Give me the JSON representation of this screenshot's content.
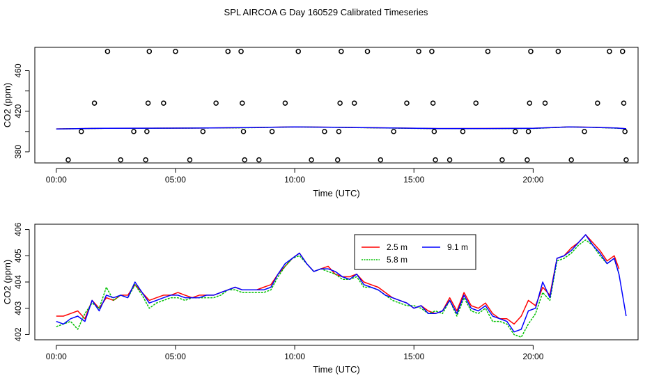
{
  "page_title": "SPL AIRCOA G  Day 160529  Calibrated Timeseries",
  "colors": {
    "s25": "#ff0000",
    "s58": "#00c000",
    "s91": "#0000ff",
    "axis": "#000000"
  },
  "chart_data": [
    {
      "type": "line+scatter",
      "xlabel": "Time (UTC)",
      "ylabel": "CO2 (ppm)",
      "xlim": [
        -0.9,
        24.4
      ],
      "ylim": [
        369,
        483
      ],
      "x_tick_values": [
        0,
        5,
        10,
        15,
        20
      ],
      "x_tick_labels": [
        "00:00",
        "05:00",
        "10:00",
        "15:00",
        "20:00"
      ],
      "y_tick_values": [
        380,
        420,
        460
      ],
      "y_tick_labels": [
        "380",
        "420",
        "460"
      ],
      "y_ticks_minor": [
        400,
        440
      ],
      "calibration_points": [
        {
          "x": 0.5,
          "y": 372
        },
        {
          "x": 1.05,
          "y": 400
        },
        {
          "x": 1.6,
          "y": 428
        },
        {
          "x": 2.15,
          "y": 479
        },
        {
          "x": 2.7,
          "y": 372
        },
        {
          "x": 3.25,
          "y": 400
        },
        {
          "x": 3.75,
          "y": 372
        },
        {
          "x": 3.8,
          "y": 400
        },
        {
          "x": 3.85,
          "y": 428
        },
        {
          "x": 3.9,
          "y": 479
        },
        {
          "x": 4.5,
          "y": 428
        },
        {
          "x": 5.0,
          "y": 479
        },
        {
          "x": 5.6,
          "y": 372
        },
        {
          "x": 6.15,
          "y": 400
        },
        {
          "x": 6.7,
          "y": 428
        },
        {
          "x": 7.2,
          "y": 479
        },
        {
          "x": 7.75,
          "y": 479
        },
        {
          "x": 7.8,
          "y": 428
        },
        {
          "x": 7.85,
          "y": 400
        },
        {
          "x": 7.9,
          "y": 372
        },
        {
          "x": 8.5,
          "y": 372
        },
        {
          "x": 9.05,
          "y": 400
        },
        {
          "x": 9.6,
          "y": 428
        },
        {
          "x": 10.15,
          "y": 479
        },
        {
          "x": 10.7,
          "y": 372
        },
        {
          "x": 11.25,
          "y": 400
        },
        {
          "x": 11.8,
          "y": 372
        },
        {
          "x": 11.85,
          "y": 400
        },
        {
          "x": 11.9,
          "y": 428
        },
        {
          "x": 11.95,
          "y": 479
        },
        {
          "x": 12.5,
          "y": 428
        },
        {
          "x": 13.05,
          "y": 479
        },
        {
          "x": 13.6,
          "y": 372
        },
        {
          "x": 14.15,
          "y": 400
        },
        {
          "x": 14.7,
          "y": 428
        },
        {
          "x": 15.2,
          "y": 479
        },
        {
          "x": 15.75,
          "y": 479
        },
        {
          "x": 15.8,
          "y": 428
        },
        {
          "x": 15.85,
          "y": 400
        },
        {
          "x": 15.9,
          "y": 372
        },
        {
          "x": 16.5,
          "y": 372
        },
        {
          "x": 17.05,
          "y": 400
        },
        {
          "x": 17.6,
          "y": 428
        },
        {
          "x": 18.1,
          "y": 479
        },
        {
          "x": 18.7,
          "y": 372
        },
        {
          "x": 19.25,
          "y": 400
        },
        {
          "x": 19.75,
          "y": 372
        },
        {
          "x": 19.8,
          "y": 400
        },
        {
          "x": 19.85,
          "y": 428
        },
        {
          "x": 19.9,
          "y": 479
        },
        {
          "x": 20.5,
          "y": 428
        },
        {
          "x": 21.05,
          "y": 479
        },
        {
          "x": 21.6,
          "y": 372
        },
        {
          "x": 22.15,
          "y": 400
        },
        {
          "x": 22.7,
          "y": 428
        },
        {
          "x": 23.2,
          "y": 479
        },
        {
          "x": 23.75,
          "y": 479
        },
        {
          "x": 23.8,
          "y": 428
        },
        {
          "x": 23.85,
          "y": 400
        },
        {
          "x": 23.9,
          "y": 372
        }
      ],
      "trend_series": [
        {
          "name": "2.5 m",
          "color_key": "s25",
          "x": [
            0,
            2,
            4,
            6,
            8,
            10,
            12,
            14,
            16,
            18,
            20,
            21.5,
            22.5,
            23.5,
            23.9
          ],
          "y": [
            402.6,
            403.2,
            403.3,
            403.4,
            403.8,
            404.6,
            404.1,
            403.5,
            402.9,
            403.0,
            403.2,
            404.6,
            404.2,
            403.4,
            402.7
          ]
        },
        {
          "name": "5.8 m",
          "color_key": "s58",
          "x": [
            0,
            2,
            4,
            6,
            8,
            10,
            12,
            14,
            16,
            18,
            20,
            21.5,
            22.5,
            23.5,
            23.9
          ],
          "y": [
            402.5,
            403.1,
            403.2,
            403.4,
            403.7,
            404.5,
            404.0,
            403.4,
            402.8,
            402.8,
            403.0,
            404.5,
            404.1,
            403.3,
            402.7
          ]
        },
        {
          "name": "9.1 m",
          "color_key": "s91",
          "x": [
            0,
            2,
            4,
            6,
            8,
            10,
            12,
            14,
            16,
            18,
            20,
            21.5,
            22.5,
            23.5,
            23.9
          ],
          "y": [
            402.5,
            403.2,
            403.3,
            403.4,
            403.8,
            404.6,
            404.1,
            403.5,
            402.9,
            402.9,
            403.1,
            404.6,
            404.1,
            403.4,
            402.7
          ]
        }
      ]
    },
    {
      "type": "line",
      "xlabel": "Time (UTC)",
      "ylabel": "CO2 (ppm)",
      "xlim": [
        -0.9,
        24.4
      ],
      "ylim": [
        401.8,
        406.2
      ],
      "x_tick_values": [
        0,
        5,
        10,
        15,
        20
      ],
      "x_tick_labels": [
        "00:00",
        "05:00",
        "10:00",
        "15:00",
        "20:00"
      ],
      "y_tick_values": [
        402,
        403,
        404,
        405,
        406
      ],
      "y_tick_labels": [
        "402",
        "403",
        "404",
        "405",
        "406"
      ],
      "legend": {
        "position": "top-center",
        "entries": [
          {
            "label": "2.5 m",
            "color_key": "s25"
          },
          {
            "label": "9.1 m",
            "color_key": "s91"
          },
          {
            "label": "5.8 m",
            "color_key": "s58"
          }
        ]
      },
      "series": [
        {
          "name": "2.5 m",
          "color_key": "s25",
          "x": [
            0,
            0.3,
            0.6,
            0.9,
            1.2,
            1.5,
            1.8,
            2.1,
            2.4,
            2.7,
            3.0,
            3.3,
            3.6,
            3.9,
            4.2,
            4.5,
            4.8,
            5.1,
            5.4,
            5.7,
            6.0,
            6.3,
            6.6,
            6.9,
            7.2,
            7.5,
            7.8,
            8.1,
            8.4,
            8.7,
            9.0,
            9.3,
            9.6,
            9.9,
            10.2,
            10.5,
            10.8,
            11.1,
            11.4,
            11.7,
            12.0,
            12.3,
            12.6,
            12.9,
            13.2,
            13.5,
            13.8,
            14.1,
            14.4,
            14.7,
            15.0,
            15.3,
            15.6,
            15.9,
            16.2,
            16.5,
            16.8,
            17.1,
            17.4,
            17.7,
            18.0,
            18.3,
            18.6,
            18.9,
            19.2,
            19.5,
            19.8,
            20.1,
            20.4,
            20.7,
            21.0,
            21.3,
            21.6,
            21.9,
            22.2,
            22.5,
            22.8,
            23.1,
            23.4,
            23.6
          ],
          "y": [
            402.7,
            402.7,
            402.8,
            402.9,
            402.6,
            403.3,
            403.0,
            403.4,
            403.3,
            403.5,
            403.5,
            403.9,
            403.6,
            403.3,
            403.4,
            403.5,
            403.5,
            403.6,
            403.5,
            403.4,
            403.5,
            403.5,
            403.5,
            403.6,
            403.7,
            403.8,
            403.7,
            403.7,
            403.7,
            403.8,
            403.9,
            404.3,
            404.6,
            404.9,
            405.1,
            404.7,
            404.4,
            404.5,
            404.6,
            404.3,
            404.2,
            404.2,
            404.3,
            404.0,
            403.9,
            403.8,
            403.6,
            403.4,
            403.3,
            403.2,
            403.0,
            403.1,
            402.9,
            402.8,
            402.9,
            403.4,
            402.9,
            403.6,
            403.1,
            403.0,
            403.2,
            402.8,
            402.6,
            402.6,
            402.4,
            402.7,
            403.3,
            403.1,
            403.8,
            403.5,
            404.9,
            405.0,
            405.3,
            405.5,
            405.8,
            405.5,
            405.2,
            404.8,
            405.0,
            404.5
          ]
        },
        {
          "name": "5.8 m",
          "color_key": "s58",
          "x": [
            0,
            0.3,
            0.6,
            0.9,
            1.2,
            1.5,
            1.8,
            2.1,
            2.4,
            2.7,
            3.0,
            3.3,
            3.6,
            3.9,
            4.2,
            4.5,
            4.8,
            5.1,
            5.4,
            5.7,
            6.0,
            6.3,
            6.6,
            6.9,
            7.2,
            7.5,
            7.8,
            8.1,
            8.4,
            8.7,
            9.0,
            9.3,
            9.6,
            9.9,
            10.2,
            10.5,
            10.8,
            11.1,
            11.4,
            11.7,
            12.0,
            12.3,
            12.6,
            12.9,
            13.2,
            13.5,
            13.8,
            14.1,
            14.4,
            14.7,
            15.0,
            15.3,
            15.6,
            15.9,
            16.2,
            16.5,
            16.8,
            17.1,
            17.4,
            17.7,
            18.0,
            18.3,
            18.6,
            18.9,
            19.2,
            19.5,
            19.8,
            20.1,
            20.4,
            20.7,
            21.0,
            21.3,
            21.6,
            21.9,
            22.2,
            22.5,
            22.8,
            23.1,
            23.4,
            23.6
          ],
          "y": [
            402.3,
            402.4,
            402.5,
            402.2,
            402.8,
            403.2,
            403.0,
            403.8,
            403.3,
            403.5,
            403.4,
            403.9,
            403.5,
            403.0,
            403.2,
            403.3,
            403.4,
            403.4,
            403.3,
            403.4,
            403.4,
            403.4,
            403.4,
            403.5,
            403.7,
            403.7,
            403.6,
            403.6,
            403.6,
            403.6,
            403.7,
            404.2,
            404.6,
            404.9,
            405.0,
            404.7,
            404.4,
            404.5,
            404.4,
            404.3,
            404.1,
            404.1,
            404.2,
            403.8,
            403.8,
            403.7,
            403.5,
            403.3,
            403.2,
            403.1,
            403.1,
            403.0,
            402.8,
            402.9,
            402.8,
            403.3,
            402.7,
            403.4,
            402.9,
            402.8,
            403.0,
            402.5,
            402.5,
            402.4,
            402.0,
            401.9,
            402.4,
            402.8,
            403.6,
            403.3,
            404.8,
            404.9,
            405.1,
            405.4,
            405.6,
            405.4,
            405.0,
            404.7,
            404.9,
            404.3
          ]
        },
        {
          "name": "9.1 m",
          "color_key": "s91",
          "x": [
            0,
            0.3,
            0.6,
            0.9,
            1.2,
            1.5,
            1.8,
            2.1,
            2.4,
            2.7,
            3.0,
            3.3,
            3.6,
            3.9,
            4.2,
            4.5,
            4.8,
            5.1,
            5.4,
            5.7,
            6.0,
            6.3,
            6.6,
            6.9,
            7.2,
            7.5,
            7.8,
            8.1,
            8.4,
            8.7,
            9.0,
            9.3,
            9.6,
            9.9,
            10.2,
            10.5,
            10.8,
            11.1,
            11.4,
            11.7,
            12.0,
            12.3,
            12.6,
            12.9,
            13.2,
            13.5,
            13.8,
            14.1,
            14.4,
            14.7,
            15.0,
            15.3,
            15.6,
            15.9,
            16.2,
            16.5,
            16.8,
            17.1,
            17.4,
            17.7,
            18.0,
            18.3,
            18.6,
            18.9,
            19.2,
            19.5,
            19.8,
            20.1,
            20.4,
            20.7,
            21.0,
            21.3,
            21.6,
            21.9,
            22.2,
            22.5,
            22.8,
            23.1,
            23.4,
            23.6,
            23.9
          ],
          "y": [
            402.5,
            402.4,
            402.6,
            402.7,
            402.5,
            403.3,
            402.9,
            403.5,
            403.4,
            403.5,
            403.4,
            404.0,
            403.6,
            403.2,
            403.3,
            403.4,
            403.5,
            403.5,
            403.4,
            403.4,
            403.4,
            403.5,
            403.5,
            403.6,
            403.7,
            403.8,
            403.7,
            403.7,
            403.7,
            403.7,
            403.8,
            404.3,
            404.7,
            404.9,
            405.1,
            404.7,
            404.4,
            404.5,
            404.5,
            404.4,
            404.2,
            404.1,
            404.3,
            403.9,
            403.8,
            403.7,
            403.5,
            403.4,
            403.3,
            403.2,
            403.0,
            403.1,
            402.8,
            402.8,
            402.9,
            403.3,
            402.8,
            403.5,
            403.0,
            402.9,
            403.1,
            402.7,
            402.6,
            402.5,
            402.1,
            402.2,
            402.9,
            403.0,
            404.0,
            403.4,
            404.9,
            405.0,
            405.2,
            405.5,
            405.8,
            405.4,
            405.1,
            404.7,
            404.9,
            404.3,
            402.7
          ]
        }
      ]
    }
  ]
}
